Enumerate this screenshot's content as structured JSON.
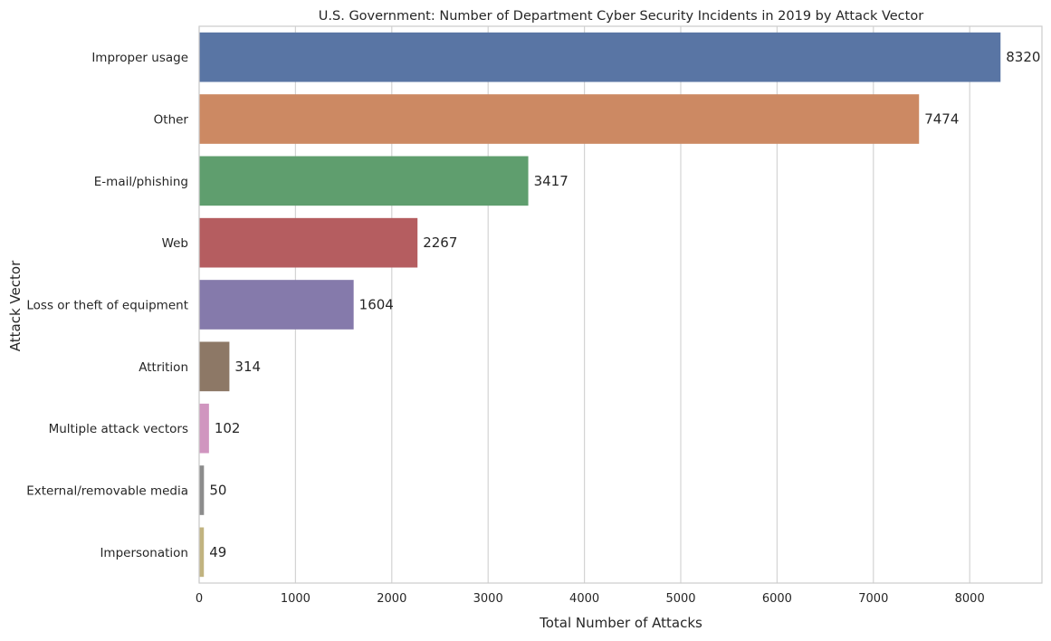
{
  "chart_data": {
    "type": "bar",
    "orientation": "horizontal",
    "title": "U.S. Government: Number of Department Cyber Security Incidents in 2019 by Attack Vector",
    "xlabel": "Total Number of Attacks",
    "ylabel": "Attack Vector",
    "xlim": [
      0,
      8750
    ],
    "xticks": [
      0,
      1000,
      2000,
      3000,
      4000,
      5000,
      6000,
      7000,
      8000
    ],
    "grid": "vertical",
    "categories": [
      "Improper usage",
      "Other",
      "E-mail/phishing",
      "Web",
      "Loss or theft of equipment",
      "Attrition",
      "Multiple attack vectors",
      "External/removable media",
      "Impersonation"
    ],
    "values": [
      8320,
      7474,
      3417,
      2267,
      1604,
      314,
      102,
      50,
      49
    ],
    "colors": [
      "#5975a4",
      "#cc8963",
      "#5f9e6e",
      "#b55d60",
      "#857aab",
      "#8d7866",
      "#d095bf",
      "#8c8c8c",
      "#c1b37f"
    ]
  }
}
